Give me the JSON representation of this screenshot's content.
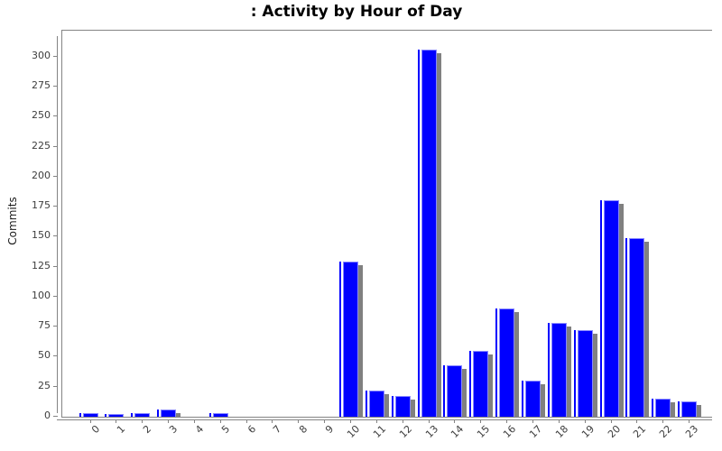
{
  "chart_data": {
    "type": "bar",
    "title": ": Activity by Hour of Day",
    "xlabel": "",
    "ylabel": "Commits",
    "categories": [
      "0",
      "1",
      "2",
      "3",
      "4",
      "5",
      "6",
      "7",
      "8",
      "9",
      "10",
      "11",
      "12",
      "13",
      "14",
      "15",
      "16",
      "17",
      "18",
      "19",
      "20",
      "21",
      "22",
      "23"
    ],
    "values": [
      3,
      2,
      3,
      6,
      0,
      3,
      0,
      0,
      0,
      0,
      129,
      22,
      17,
      306,
      43,
      55,
      90,
      30,
      78,
      72,
      180,
      149,
      15,
      13
    ],
    "yticks": [
      0,
      25,
      50,
      75,
      100,
      125,
      150,
      175,
      200,
      225,
      250,
      275,
      300
    ],
    "ylim": [
      0,
      322
    ],
    "grid": false,
    "legend": false,
    "colors": {
      "bar": "#0000ff",
      "bar_edge": "#8888ff",
      "bar_shadow": "#808080",
      "axis": "#848484",
      "tick_label": "#3d3d3d",
      "title": "#000000"
    }
  }
}
